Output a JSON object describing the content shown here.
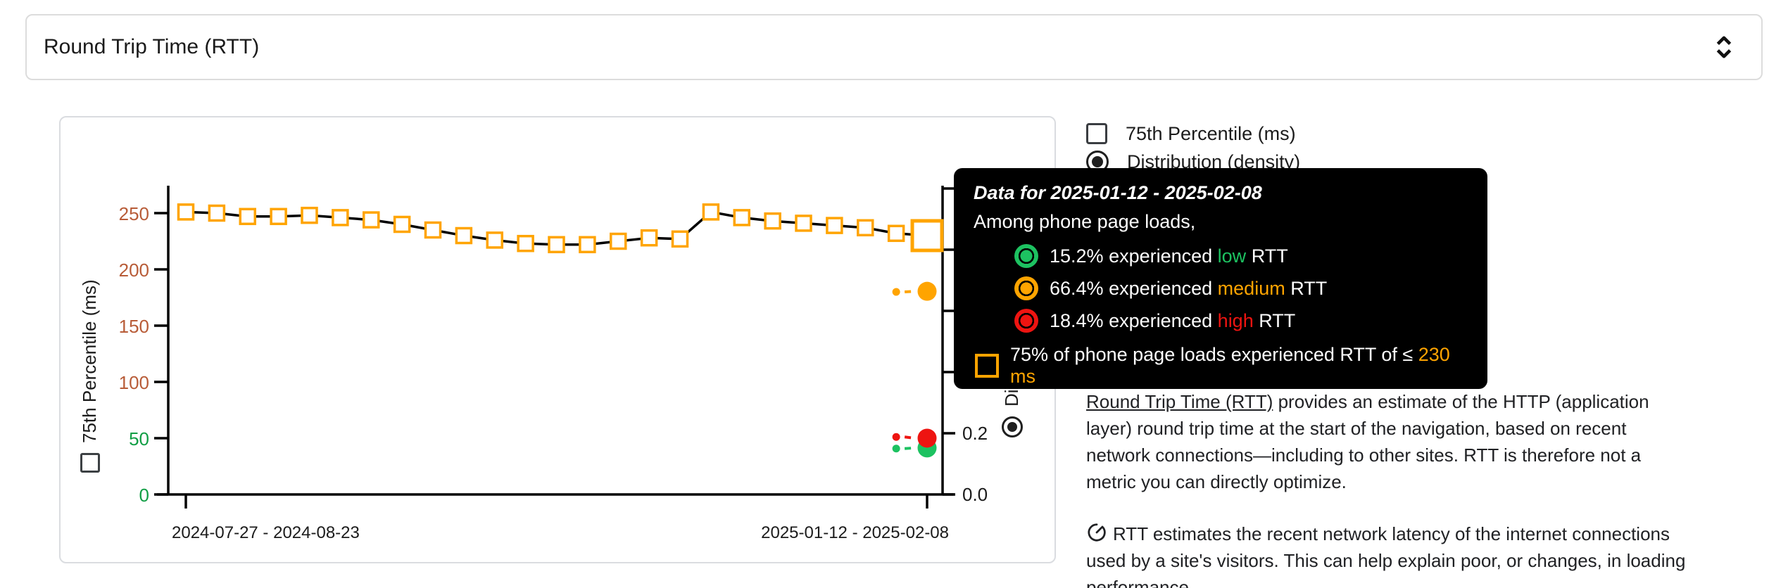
{
  "header": {
    "title": "Round Trip Time (RTT)"
  },
  "legend": {
    "items": [
      {
        "label": "75th Percentile (ms)",
        "control": "checkbox",
        "checked": false
      },
      {
        "label": "Distribution (density)",
        "control": "radio",
        "checked": true
      }
    ]
  },
  "tooltip": {
    "title": "Data for 2025-01-12 - 2025-02-08",
    "subtitle": "Among phone page loads,",
    "rows": [
      {
        "pct": "15.2%",
        "middle": " experienced ",
        "category": "low",
        "tail": " RTT"
      },
      {
        "pct": "66.4%",
        "middle": " experienced ",
        "category": "medium",
        "tail": " RTT"
      },
      {
        "pct": "18.4%",
        "middle": " experienced ",
        "category": "high",
        "tail": " RTT"
      }
    ],
    "footer": {
      "prefix": "75% of phone page loads experienced RTT of ≤ ",
      "highlight": "230 ms"
    }
  },
  "description": {
    "p1_link": "Round Trip Time (RTT)",
    "p1_rest": " provides an estimate of the HTTP (application layer) round trip time at the start of the navigation, based on recent network connections—including to other sites. RTT is therefore not a metric you can directly optimize.",
    "p2": "RTT estimates the recent network latency of the internet connections used by a site's visitors. This can help explain poor, or changes, in loading performance."
  },
  "colors": {
    "low": "#1dc261",
    "medium": "#ffa400",
    "high": "#ee1411",
    "axis_low_tick": "#119e45",
    "axis_mid_tick": "#b85c38",
    "line": "#000000",
    "text": "#1b1b1b"
  },
  "chart_data": {
    "type": "line",
    "title": "Round Trip Time (RTT)",
    "x_axis": {
      "tick_labels": [
        "2024-07-27 - 2024-08-23",
        "2025-01-12 - 2025-02-08"
      ],
      "tick_point_indices": [
        0,
        24
      ]
    },
    "left_axis": {
      "label": "75th Percentile (ms)",
      "ticks": [
        0,
        50,
        100,
        150,
        200,
        250
      ],
      "range": [
        0,
        275
      ]
    },
    "right_axis": {
      "label": "Distribution (density)",
      "ticks": [
        0,
        0.2,
        0.4,
        0.6,
        0.8,
        1.0
      ],
      "labeled_ticks": [
        "0.0",
        "0.2"
      ],
      "range": [
        0,
        1.0
      ]
    },
    "series": [
      {
        "name": "75th Percentile (ms)",
        "marker": "square",
        "values": [
          251,
          250,
          247,
          247,
          248,
          246,
          244,
          240,
          235,
          230,
          226,
          223,
          222,
          222,
          225,
          228,
          227,
          251,
          246,
          243,
          241,
          239,
          237,
          232,
          230
        ],
        "highlighted_index": 24,
        "highlighted_value_ms": 230
      }
    ],
    "density_series": [
      {
        "name": "medium",
        "color_key": "medium",
        "point_indices": [
          23,
          24
        ],
        "values": [
          0.662,
          0.664
        ]
      },
      {
        "name": "low",
        "color_key": "low",
        "point_indices": [
          23,
          24
        ],
        "values": [
          0.15,
          0.152
        ]
      },
      {
        "name": "high",
        "color_key": "high",
        "point_indices": [
          23,
          24
        ],
        "values": [
          0.188,
          0.184
        ]
      }
    ]
  }
}
